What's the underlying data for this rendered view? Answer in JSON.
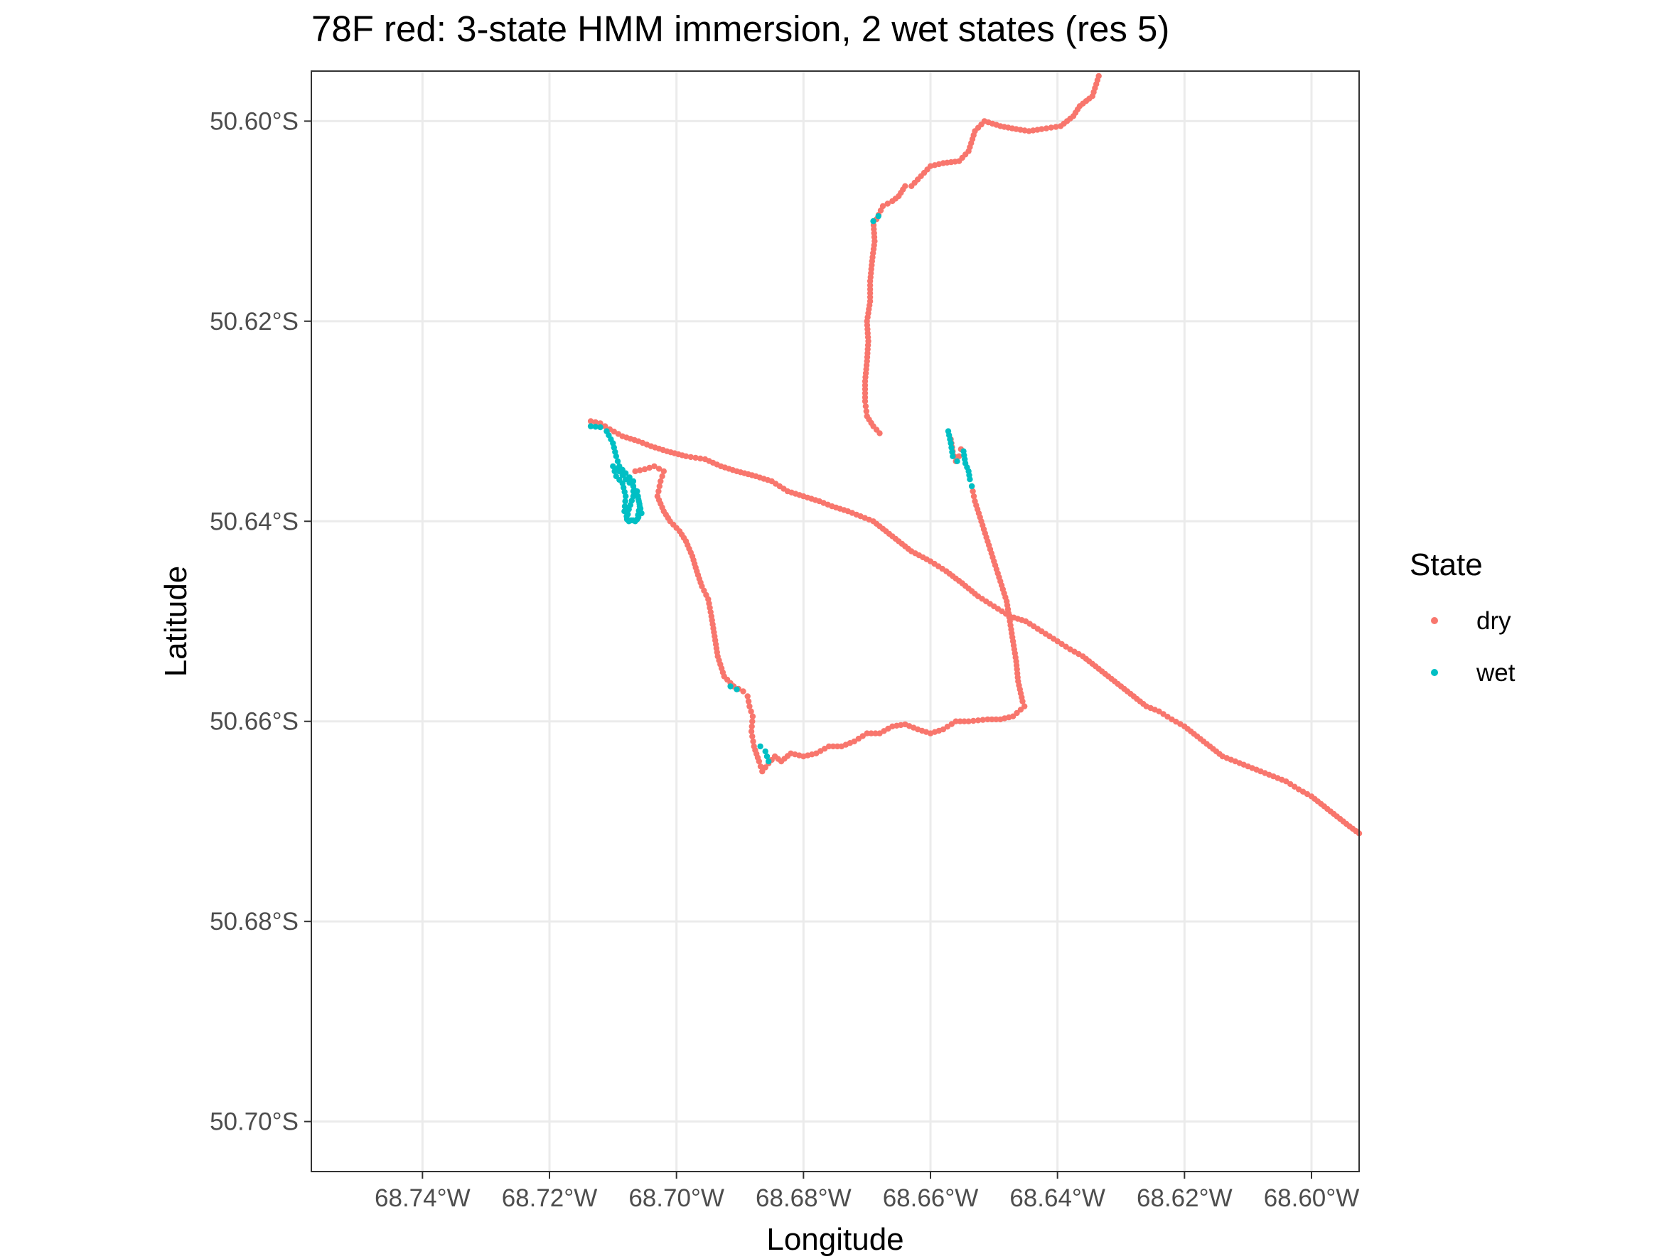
{
  "chart_data": {
    "type": "scatter",
    "title": "78F red: 3-state HMM immersion, 2 wet states (res 5)",
    "xlabel": "Longitude",
    "ylabel": "Latitude",
    "xlim": [
      -68.7575,
      -68.5925
    ],
    "ylim": [
      -50.705,
      -50.595
    ],
    "x_ticks": [
      {
        "value": -68.74,
        "label": "68.74°W"
      },
      {
        "value": -68.72,
        "label": "68.72°W"
      },
      {
        "value": -68.7,
        "label": "68.70°W"
      },
      {
        "value": -68.68,
        "label": "68.68°W"
      },
      {
        "value": -68.66,
        "label": "68.66°W"
      },
      {
        "value": -68.64,
        "label": "68.64°W"
      },
      {
        "value": -68.62,
        "label": "68.62°W"
      },
      {
        "value": -68.6,
        "label": "68.60°W"
      }
    ],
    "y_ticks": [
      {
        "value": -50.6,
        "label": "50.60°S"
      },
      {
        "value": -50.62,
        "label": "50.62°S"
      },
      {
        "value": -50.64,
        "label": "50.64°S"
      },
      {
        "value": -50.66,
        "label": "50.66°S"
      },
      {
        "value": -50.68,
        "label": "50.68°S"
      },
      {
        "value": -50.7,
        "label": "50.70°S"
      }
    ],
    "grid": true,
    "legend": {
      "title": "State",
      "position": "right"
    },
    "series": [
      {
        "name": "dry",
        "color": "#F8766D",
        "segments": [
          [
            [
              -68.6335,
              -50.5955
            ],
            [
              -68.6345,
              -50.5975
            ],
            [
              -68.6365,
              -50.5985
            ],
            [
              -68.6375,
              -50.5995
            ],
            [
              -68.6395,
              -50.6005
            ],
            [
              -68.6425,
              -50.6008
            ],
            [
              -68.6445,
              -50.601
            ],
            [
              -68.6465,
              -50.6008
            ],
            [
              -68.649,
              -50.6005
            ],
            [
              -68.6515,
              -50.6
            ],
            [
              -68.653,
              -50.601
            ],
            [
              -68.654,
              -50.603
            ],
            [
              -68.6555,
              -50.604
            ],
            [
              -68.658,
              -50.6042
            ],
            [
              -68.66,
              -50.6045
            ],
            [
              -68.6615,
              -50.6055
            ],
            [
              -68.663,
              -50.6065
            ],
            [
              -68.664,
              -50.6065
            ],
            [
              -68.665,
              -50.6075
            ],
            [
              -68.666,
              -50.608
            ],
            [
              -68.6675,
              -50.6085
            ],
            [
              -68.6685,
              -50.6098
            ]
          ],
          [
            [
              -68.669,
              -50.61
            ],
            [
              -68.6688,
              -50.612
            ],
            [
              -68.6692,
              -50.614
            ],
            [
              -68.6695,
              -50.616
            ],
            [
              -68.6695,
              -50.618
            ],
            [
              -68.67,
              -50.62
            ],
            [
              -68.6698,
              -50.622
            ],
            [
              -68.67,
              -50.624
            ],
            [
              -68.6703,
              -50.626
            ],
            [
              -68.6703,
              -50.628
            ],
            [
              -68.67,
              -50.6295
            ],
            [
              -68.669,
              -50.6305
            ],
            [
              -68.668,
              -50.6312
            ]
          ],
          [
            [
              -68.6568,
              -50.6318
            ],
            [
              -68.6565,
              -50.633
            ],
            [
              -68.656,
              -50.634
            ],
            [
              -68.6555,
              -50.6335
            ],
            [
              -68.6552,
              -50.6328
            ]
          ],
          [
            [
              -68.6535,
              -50.6365
            ],
            [
              -68.653,
              -50.638
            ],
            [
              -68.652,
              -50.64
            ],
            [
              -68.651,
              -50.642
            ],
            [
              -68.65,
              -50.644
            ],
            [
              -68.649,
              -50.646
            ],
            [
              -68.648,
              -50.648
            ],
            [
              -68.6475,
              -50.65
            ],
            [
              -68.647,
              -50.652
            ],
            [
              -68.6465,
              -50.654
            ],
            [
              -68.6462,
              -50.656
            ],
            [
              -68.6455,
              -50.658
            ],
            [
              -68.6452,
              -50.6585
            ],
            [
              -68.647,
              -50.6595
            ],
            [
              -68.649,
              -50.6598
            ],
            [
              -68.651,
              -50.6598
            ],
            [
              -68.654,
              -50.66
            ],
            [
              -68.656,
              -50.66
            ],
            [
              -68.658,
              -50.6608
            ],
            [
              -68.66,
              -50.6612
            ],
            [
              -68.662,
              -50.6608
            ],
            [
              -68.664,
              -50.6603
            ],
            [
              -68.666,
              -50.6605
            ],
            [
              -68.668,
              -50.6612
            ],
            [
              -68.67,
              -50.6612
            ],
            [
              -68.672,
              -50.662
            ],
            [
              -68.674,
              -50.6625
            ],
            [
              -68.676,
              -50.6625
            ],
            [
              -68.678,
              -50.6632
            ],
            [
              -68.68,
              -50.6635
            ],
            [
              -68.682,
              -50.6632
            ],
            [
              -68.6835,
              -50.664
            ],
            [
              -68.6845,
              -50.6635
            ],
            [
              -68.6855,
              -50.6642
            ],
            [
              -68.6865,
              -50.665
            ],
            [
              -68.687,
              -50.664
            ],
            [
              -68.6878,
              -50.6625
            ],
            [
              -68.6882,
              -50.661
            ],
            [
              -68.688,
              -50.6595
            ],
            [
              -68.6885,
              -50.6585
            ],
            [
              -68.6888,
              -50.6575
            ],
            [
              -68.6895,
              -50.657
            ],
            [
              -68.691,
              -50.6565
            ]
          ],
          [
            [
              -68.691,
              -50.6565
            ],
            [
              -68.6925,
              -50.6555
            ],
            [
              -68.6935,
              -50.6535
            ],
            [
              -68.694,
              -50.6515
            ],
            [
              -68.6945,
              -50.6495
            ],
            [
              -68.695,
              -50.6478
            ],
            [
              -68.696,
              -50.6465
            ],
            [
              -68.6968,
              -50.645
            ],
            [
              -68.6975,
              -50.6435
            ],
            [
              -68.6985,
              -50.642
            ],
            [
              -68.6995,
              -50.641
            ],
            [
              -68.701,
              -50.64
            ],
            [
              -68.702,
              -50.639
            ],
            [
              -68.703,
              -50.6375
            ],
            [
              -68.7025,
              -50.636
            ],
            [
              -68.702,
              -50.635
            ],
            [
              -68.7035,
              -50.6345
            ],
            [
              -68.705,
              -50.6348
            ],
            [
              -68.7065,
              -50.635
            ]
          ],
          [
            [
              -68.7135,
              -50.6305
            ],
            [
              -68.7135,
              -50.63
            ],
            [
              -68.712,
              -50.6302
            ],
            [
              -68.7105,
              -50.6308
            ],
            [
              -68.7085,
              -50.6315
            ],
            [
              -68.706,
              -50.632
            ],
            [
              -68.704,
              -50.6325
            ],
            [
              -68.7015,
              -50.633
            ],
            [
              -68.6985,
              -50.6335
            ],
            [
              -68.6955,
              -50.6338
            ],
            [
              -68.693,
              -50.6345
            ],
            [
              -68.6905,
              -50.635
            ],
            [
              -68.6875,
              -50.6355
            ],
            [
              -68.685,
              -50.636
            ],
            [
              -68.6825,
              -50.637
            ],
            [
              -68.68,
              -50.6375
            ],
            [
              -68.6775,
              -50.638
            ],
            [
              -68.6755,
              -50.6385
            ],
            [
              -68.673,
              -50.639
            ],
            [
              -68.671,
              -50.6395
            ],
            [
              -68.669,
              -50.64
            ],
            [
              -68.667,
              -50.641
            ],
            [
              -68.665,
              -50.642
            ],
            [
              -68.663,
              -50.643
            ],
            [
              -68.66,
              -50.644
            ],
            [
              -68.6575,
              -50.645
            ],
            [
              -68.655,
              -50.6462
            ],
            [
              -68.6525,
              -50.6475
            ],
            [
              -68.65,
              -50.6485
            ],
            [
              -68.6475,
              -50.6495
            ],
            [
              -68.645,
              -50.65
            ],
            [
              -68.6425,
              -50.651
            ],
            [
              -68.64,
              -50.652
            ],
            [
              -68.638,
              -50.6528
            ],
            [
              -68.636,
              -50.6535
            ],
            [
              -68.634,
              -50.6545
            ],
            [
              -68.632,
              -50.6555
            ],
            [
              -68.63,
              -50.6565
            ],
            [
              -68.628,
              -50.6575
            ],
            [
              -68.626,
              -50.6585
            ],
            [
              -68.624,
              -50.659
            ],
            [
              -68.622,
              -50.6598
            ],
            [
              -68.62,
              -50.6605
            ],
            [
              -68.618,
              -50.6615
            ],
            [
              -68.616,
              -50.6625
            ],
            [
              -68.614,
              -50.6635
            ],
            [
              -68.612,
              -50.664
            ],
            [
              -68.61,
              -50.6645
            ],
            [
              -68.608,
              -50.665
            ],
            [
              -68.606,
              -50.6655
            ],
            [
              -68.604,
              -50.666
            ],
            [
              -68.602,
              -50.6668
            ],
            [
              -68.6,
              -50.6675
            ],
            [
              -68.598,
              -50.6685
            ],
            [
              -68.596,
              -50.6695
            ],
            [
              -68.594,
              -50.6705
            ],
            [
              -68.5925,
              -50.6712
            ]
          ]
        ]
      },
      {
        "name": "wet",
        "color": "#00BFC4",
        "segments": [
          [
            [
              -68.669,
              -50.61
            ],
            [
              -68.6682,
              -50.6095
            ]
          ],
          [
            [
              -68.6572,
              -50.631
            ],
            [
              -68.6568,
              -50.6322
            ],
            [
              -68.6565,
              -50.6335
            ],
            [
              -68.6558,
              -50.634
            ]
          ],
          [
            [
              -68.6548,
              -50.633
            ],
            [
              -68.6545,
              -50.6342
            ],
            [
              -68.654,
              -50.635
            ],
            [
              -68.6538,
              -50.6358
            ],
            [
              -68.6535,
              -50.6365
            ]
          ],
          [
            [
              -68.7135,
              -50.6305
            ],
            [
              -68.712,
              -50.6306
            ],
            [
              -68.711,
              -50.631
            ],
            [
              -68.71,
              -50.6322
            ],
            [
              -68.7095,
              -50.6335
            ],
            [
              -68.709,
              -50.6345
            ],
            [
              -68.708,
              -50.6352
            ],
            [
              -68.7068,
              -50.636
            ],
            [
              -68.7068,
              -50.6375
            ],
            [
              -68.7075,
              -50.6388
            ],
            [
              -68.7078,
              -50.6398
            ],
            [
              -68.7065,
              -50.64
            ],
            [
              -68.7055,
              -50.6392
            ],
            [
              -68.706,
              -50.6378
            ],
            [
              -68.7068,
              -50.6365
            ],
            [
              -68.708,
              -50.6358
            ],
            [
              -68.709,
              -50.635
            ],
            [
              -68.71,
              -50.6345
            ],
            [
              -68.7095,
              -50.6355
            ],
            [
              -68.7085,
              -50.6362
            ],
            [
              -68.708,
              -50.6375
            ],
            [
              -68.7082,
              -50.639
            ],
            [
              -68.7075,
              -50.64
            ],
            [
              -68.7062,
              -50.6398
            ],
            [
              -68.7058,
              -50.6385
            ],
            [
              -68.7062,
              -50.637
            ]
          ],
          [
            [
              -68.6915,
              -50.6565
            ],
            [
              -68.6905,
              -50.6568
            ]
          ],
          [
            [
              -68.6868,
              -50.6625
            ],
            [
              -68.686,
              -50.663
            ],
            [
              -68.6855,
              -50.664
            ]
          ]
        ]
      }
    ]
  }
}
